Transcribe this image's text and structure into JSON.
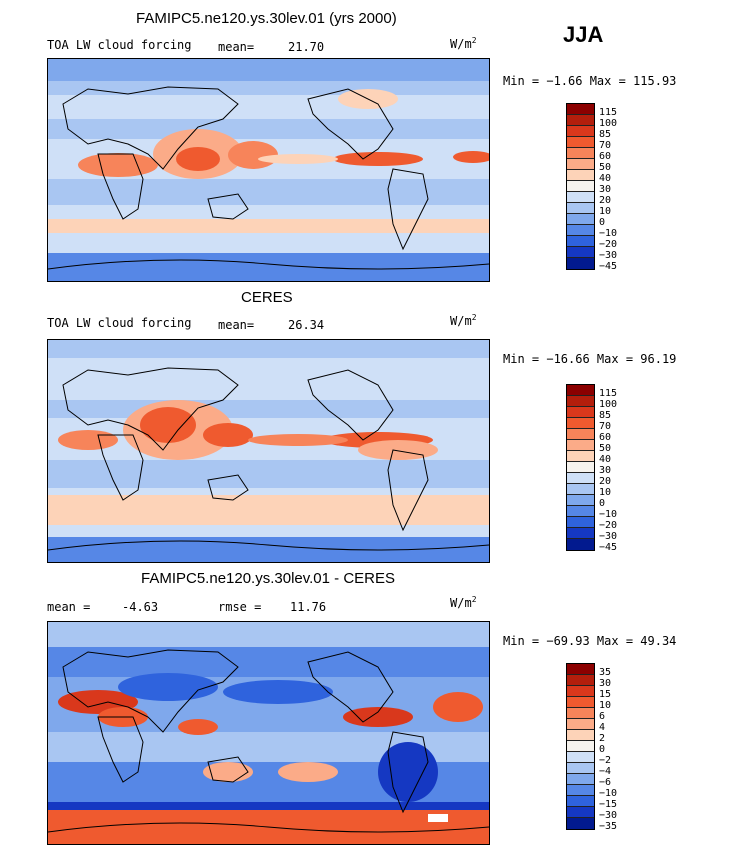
{
  "season": "JJA",
  "units_base": "W/m",
  "units_exp": "2",
  "panels": [
    {
      "title": "FAMIPC5.ne120.ys.30lev.01 (yrs 2000)",
      "left_label": "TOA LW cloud forcing",
      "stat_label": "mean=",
      "stat_value": "21.70",
      "stat2_label": "",
      "stat2_value": "",
      "min_text": "Min =  −1.66 Max = 115.93",
      "levels": [
        "115",
        "100",
        "85",
        "70",
        "60",
        "50",
        "40",
        "30",
        "20",
        "10",
        "0",
        "−10",
        "−20",
        "−30",
        "−45"
      ],
      "colors": [
        "#8b0000",
        "#b31e0c",
        "#d9381c",
        "#ef5a2f",
        "#f7845a",
        "#fbab88",
        "#fdd3b8",
        "#f6f3ee",
        "#cfe0f7",
        "#a9c6f2",
        "#7fa8ec",
        "#5687e6",
        "#2f63dd",
        "#1538c2",
        "#021a8f"
      ]
    },
    {
      "title": "CERES",
      "left_label": "TOA LW cloud forcing",
      "stat_label": "mean=",
      "stat_value": "26.34",
      "stat2_label": "",
      "stat2_value": "",
      "min_text": "Min = −16.66 Max =  96.19",
      "levels": [
        "115",
        "100",
        "85",
        "70",
        "60",
        "50",
        "40",
        "30",
        "20",
        "10",
        "0",
        "−10",
        "−20",
        "−30",
        "−45"
      ],
      "colors": [
        "#8b0000",
        "#b31e0c",
        "#d9381c",
        "#ef5a2f",
        "#f7845a",
        "#fbab88",
        "#fdd3b8",
        "#f6f3ee",
        "#cfe0f7",
        "#a9c6f2",
        "#7fa8ec",
        "#5687e6",
        "#2f63dd",
        "#1538c2",
        "#021a8f"
      ]
    },
    {
      "title": "FAMIPC5.ne120.ys.30lev.01 - CERES",
      "left_label": "",
      "stat_label": "mean =",
      "stat_value": "-4.63",
      "stat2_label": "rmse =",
      "stat2_value": "11.76",
      "min_text": "Min = −69.93 Max =  49.34",
      "levels": [
        "35",
        "30",
        "15",
        "10",
        "6",
        "4",
        "2",
        "0",
        "−2",
        "−4",
        "−6",
        "−10",
        "−15",
        "−30",
        "−35"
      ],
      "colors": [
        "#8b0000",
        "#b31e0c",
        "#d9381c",
        "#ef5a2f",
        "#f7845a",
        "#fbab88",
        "#fdd3b8",
        "#f6f3ee",
        "#cfe0f7",
        "#a9c6f2",
        "#7fa8ec",
        "#5687e6",
        "#2f63dd",
        "#1538c2",
        "#021a8f"
      ]
    }
  ]
}
